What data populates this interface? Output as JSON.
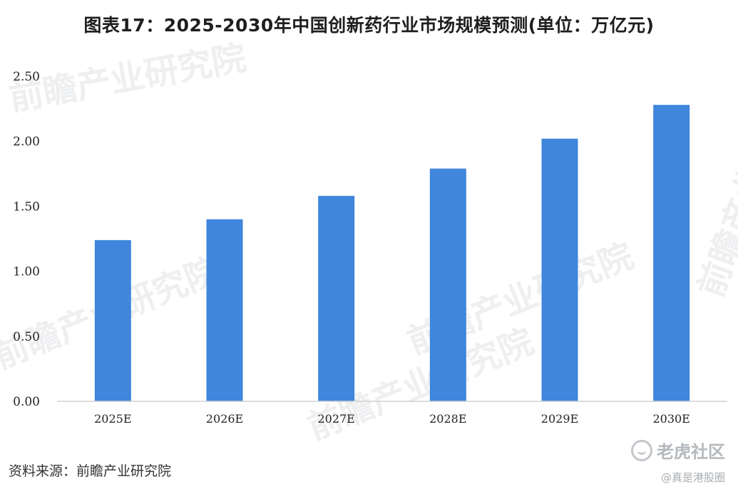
{
  "chart_data": {
    "type": "bar",
    "title": "图表17：2025-2030年中国创新药行业市场规模预测(单位：万亿元)",
    "categories": [
      "2025E",
      "2026E",
      "2027E",
      "2028E",
      "2029E",
      "2030E"
    ],
    "values": [
      1.24,
      1.4,
      1.58,
      1.79,
      2.02,
      2.28
    ],
    "ylim": [
      0,
      2.5
    ],
    "yticks": [
      "0.00",
      "0.50",
      "1.00",
      "1.50",
      "2.00",
      "2.50"
    ],
    "ytick_values": [
      0,
      0.5,
      1.0,
      1.5,
      2.0,
      2.5
    ],
    "grid": false,
    "legend": "none",
    "bar_color": "#3f86dc",
    "axis_color": "#d0d0d0"
  },
  "source": "资料来源：前瞻产业研究院",
  "watermark": {
    "brand": "前瞻产业研究院"
  },
  "corner": {
    "brand": "老虎社区",
    "handle": "@真是港股圈"
  }
}
